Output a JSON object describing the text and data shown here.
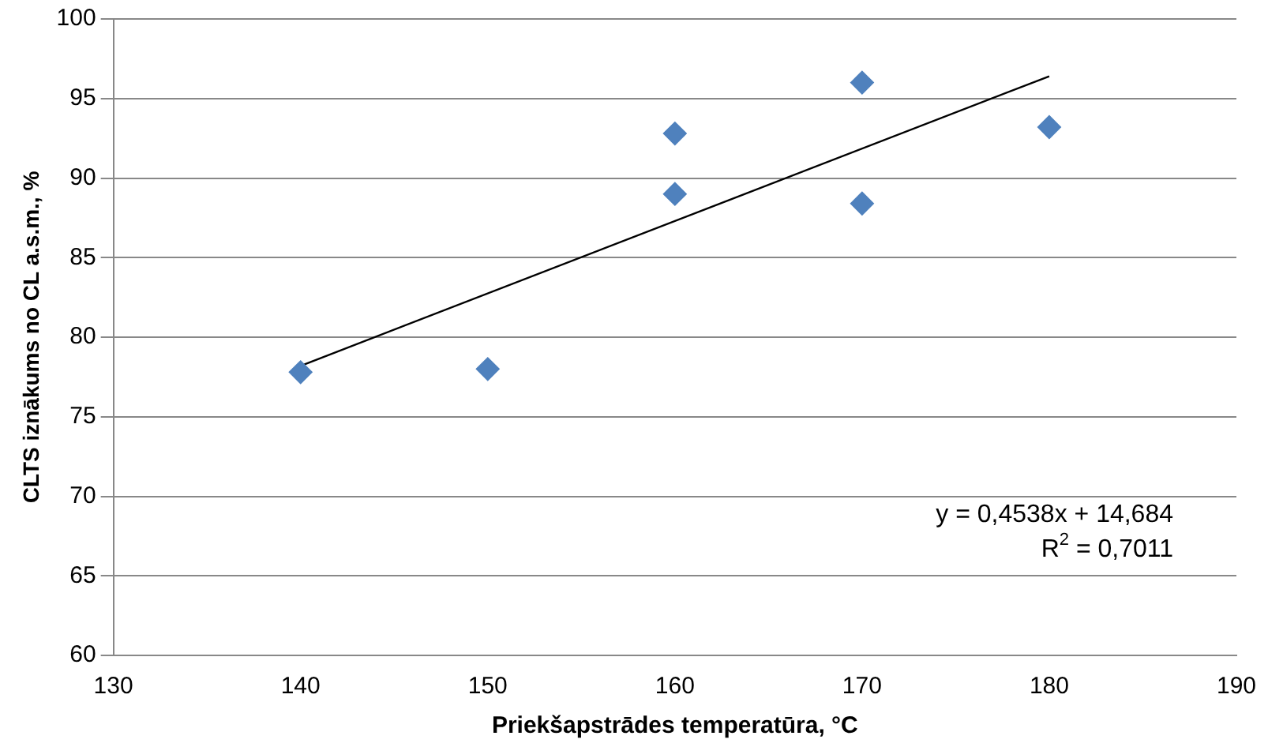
{
  "chart_data": {
    "type": "scatter",
    "xlabel": "Priekšapstrādes temperatūra, °C",
    "ylabel": "CLTS iznākums no CL a.s.m., %",
    "x": [
      140,
      150,
      160,
      160,
      170,
      170,
      180
    ],
    "series": [
      {
        "color": "#4f81bd",
        "values": [
          77.8,
          78.0,
          92.8,
          89.0,
          96.0,
          88.4,
          93.2
        ],
        "marker": "diamond"
      },
      {
        "type": "line",
        "x": [
          140,
          180
        ],
        "color": "#000000",
        "values": [
          78.2,
          96.4
        ],
        "marker": "none"
      }
    ],
    "xlim": [
      130,
      190
    ],
    "xticks": [
      130,
      140,
      150,
      160,
      170,
      180,
      190
    ],
    "ylim": [
      60,
      100
    ],
    "yticks": [
      60,
      65,
      70,
      75,
      80,
      85,
      90,
      95,
      100
    ],
    "grid": "y",
    "legend": false,
    "annotations": [
      "y = 0,4538x + 14,684",
      "R$^{2}$ = 0,7011"
    ]
  }
}
